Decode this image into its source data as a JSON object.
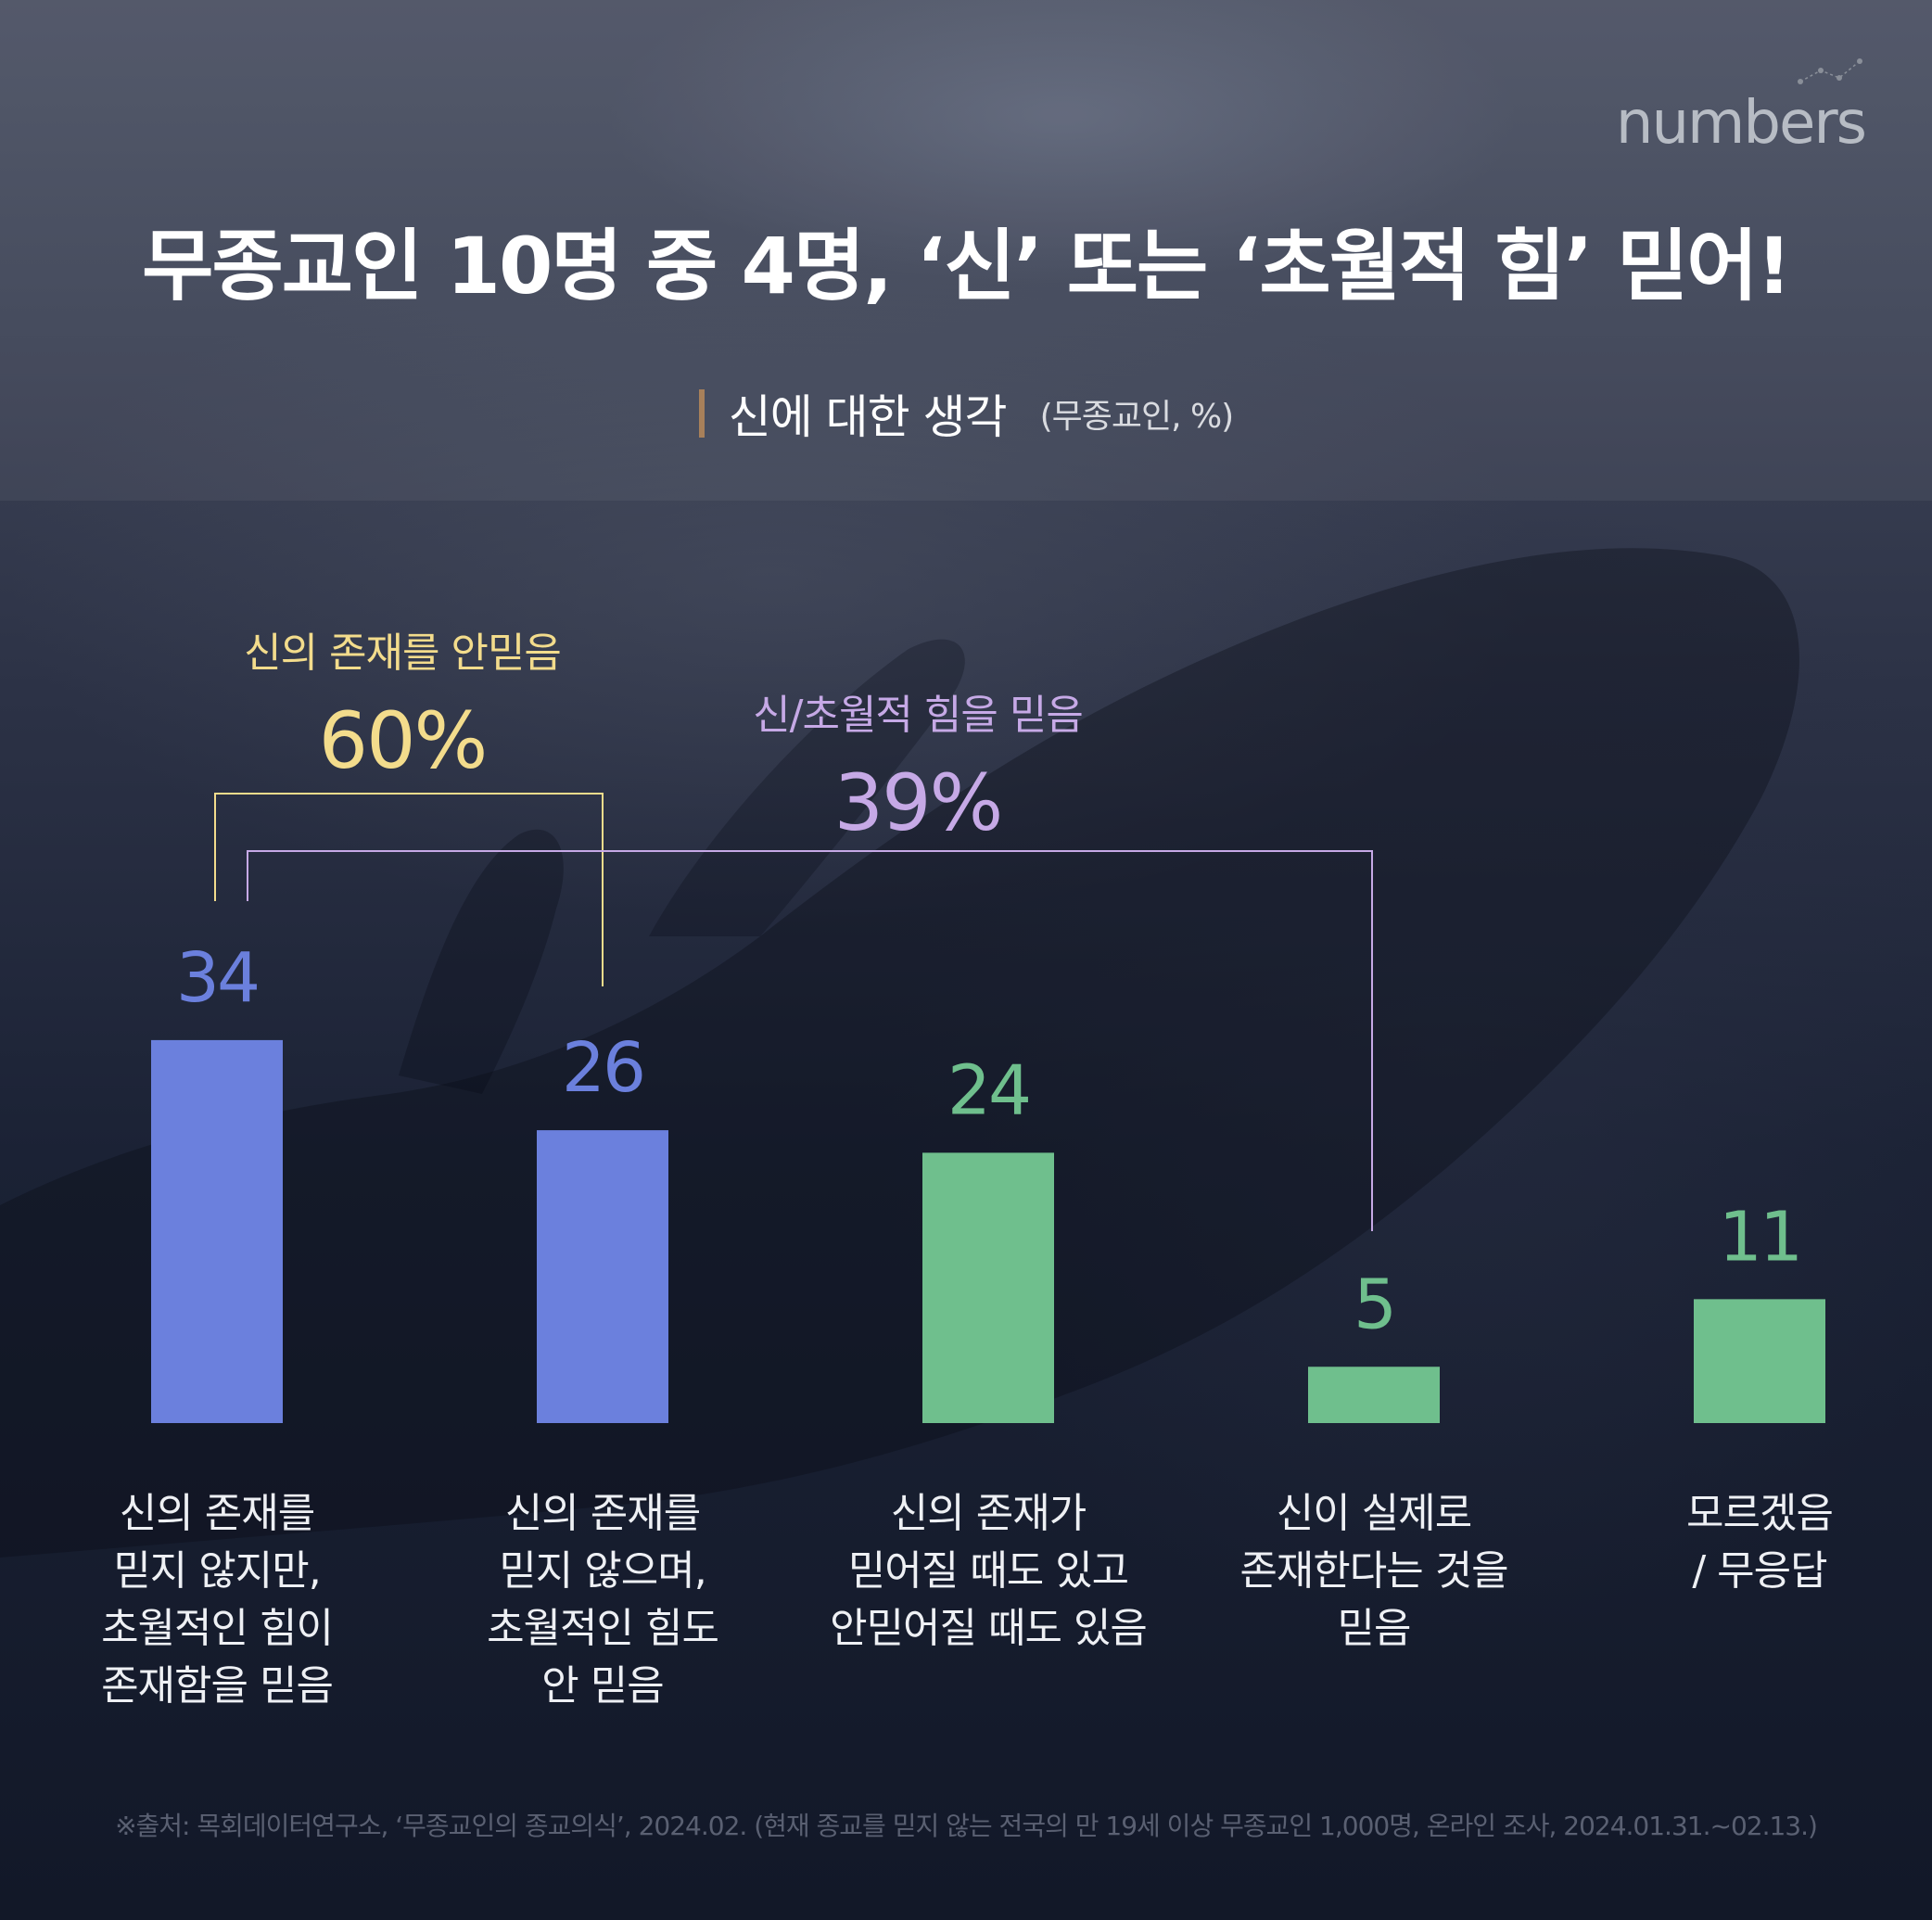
{
  "brand": {
    "logo_text": "numbers",
    "accent": "#5fb48b"
  },
  "header": {
    "title": "무종교인 10명 중 4명, ‘신’ 또는 ‘초월적 힘’ 믿어!",
    "subtitle": "신에 대한 생각",
    "subtitle_note": "(무종교인, %)"
  },
  "groups": [
    {
      "name": "신의 존재를 안믿음",
      "value_label": "60%",
      "color": "#f3dc8c",
      "from_index": 0,
      "to_index": 1
    },
    {
      "name": "신/초월적 힘을 믿음",
      "value_label": "39%",
      "color": "#c6a9e6",
      "from_index": 0,
      "to_index": 3
    }
  ],
  "chart_data": {
    "type": "bar",
    "title": "신에 대한 생각",
    "subtitle": "(무종교인, %)",
    "categories": [
      "신의 존재를\n믿지 않지만,\n초월적인 힘이\n존재함을 믿음",
      "신의 존재를\n믿지 않으며,\n초월적인 힘도\n안 믿음",
      "신의 존재가\n믿어질 때도 있고\n안믿어질 때도 있음",
      "신이 실제로\n존재한다는 것을\n믿음",
      "모르겠음\n/  무응답"
    ],
    "values": [
      34,
      26,
      24,
      5,
      11
    ],
    "value_labels": [
      "34",
      "26",
      "24",
      "5",
      "11"
    ],
    "colors": [
      "#6b80dd",
      "#6b80dd",
      "#6fbf8d",
      "#6fbf8d",
      "#6fbf8d"
    ],
    "ylim": [
      0,
      34
    ],
    "grid": false,
    "xlabel": "",
    "ylabel": ""
  },
  "footer": {
    "source": "※출처: 목회데이터연구소, ‘무종교인의 종교의식’, 2024.02. (현재 종교를 믿지 않는 전국의 만 19세 이상 무종교인 1,000명, 온라인 조사, 2024.01.31.~02.13.)"
  }
}
